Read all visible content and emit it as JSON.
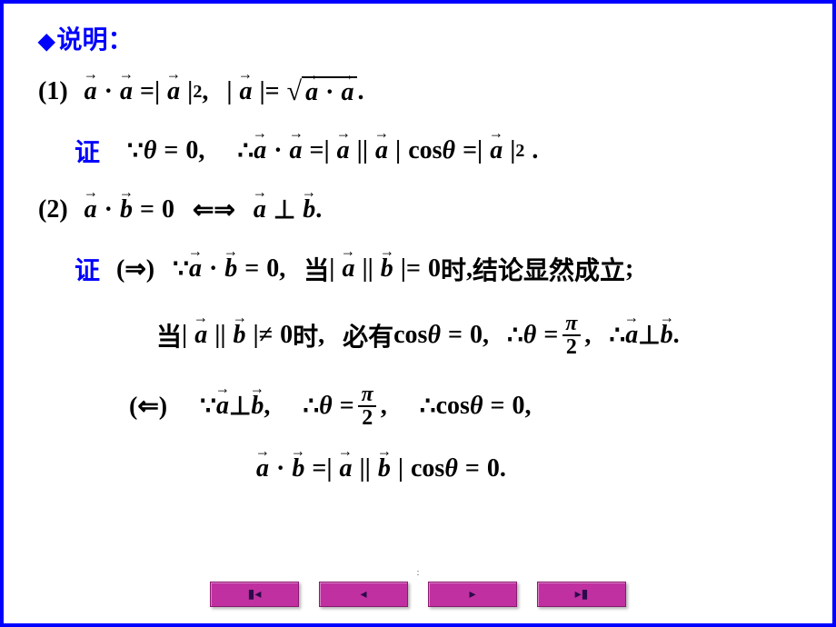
{
  "heading": {
    "diamond": "◆",
    "text": "说明："
  },
  "lines": {
    "l1_num": "(1)",
    "l1_a": "a",
    "l1_dot": "·",
    "l1_eq": "=",
    "l1_bar": "|",
    "l1_sq": "2",
    "l1_comma": ",",
    "l1_period": ".",
    "proof": "证",
    "because": "∵",
    "therefore": "∴",
    "theta": "θ",
    "zero": "0",
    "cos": "cos",
    "l3_num": "(2)",
    "b": "b",
    "iff": "⇐⇒",
    "perp": "⊥",
    "imp_r": "(⇒)",
    "imp_l": "(⇐)",
    "dang": "当",
    "shi": "时",
    "jielun": "结论显然成立",
    "neq": "≠",
    "biyou": "必有",
    "pi": "π",
    "two": "2",
    "semi": ";"
  },
  "colors": {
    "border": "#0000ff",
    "heading": "#0000ff",
    "text": "#000000",
    "nav_bg": "#c030a0",
    "nav_fg": "#2a0a4a"
  },
  "nav": {
    "first": "▮◂",
    "prev": "◂",
    "next": "▸",
    "last": "▸▮"
  },
  "page_marker": ":"
}
